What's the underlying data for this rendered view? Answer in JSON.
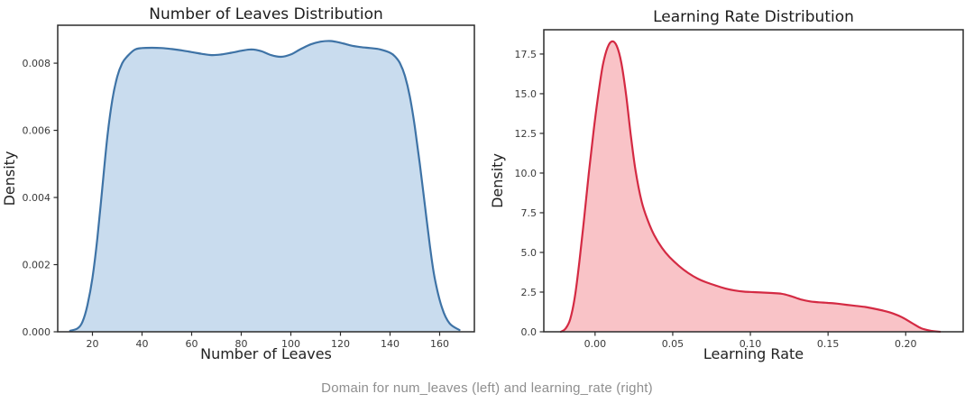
{
  "caption": "Domain for num_leaves (left) and learning_rate (right)",
  "colors": {
    "background": "#ffffff",
    "axis": "#2b2b2b",
    "title": "#1c1c1c",
    "tick_label": "#3a3a3a",
    "caption": "#8f8f8f"
  },
  "chart_data": [
    {
      "type": "area",
      "title": "Number of Leaves Distribution",
      "xlabel": "Number of Leaves",
      "ylabel": "Density",
      "xlim": [
        6,
        174
      ],
      "ylim": [
        0,
        0.00913
      ],
      "grid": false,
      "legend": "none",
      "line_color": "#3e73a6",
      "fill_color": "#c9dcee",
      "xticks": {
        "values": [
          20,
          40,
          60,
          80,
          100,
          120,
          140,
          160
        ],
        "labels": [
          "20",
          "40",
          "60",
          "80",
          "100",
          "120",
          "140",
          "160"
        ]
      },
      "yticks": {
        "values": [
          0,
          0.002,
          0.004,
          0.006,
          0.008
        ],
        "labels": [
          "0.000",
          "0.002",
          "0.004",
          "0.006",
          "0.008"
        ]
      },
      "x": [
        11,
        14,
        16,
        18,
        20,
        22,
        24,
        26,
        28,
        30,
        32,
        34,
        37,
        40,
        44,
        48,
        52,
        56,
        60,
        64,
        68,
        72,
        76,
        80,
        84,
        88,
        92,
        96,
        100,
        104,
        108,
        112,
        116,
        120,
        124,
        128,
        132,
        136,
        140,
        142,
        144,
        146,
        148,
        150,
        152,
        154,
        156,
        158,
        161,
        164,
        168
      ],
      "y": [
        3e-05,
        0.0001,
        0.0003,
        0.0008,
        0.0016,
        0.0028,
        0.0043,
        0.0058,
        0.0069,
        0.0076,
        0.008,
        0.0082,
        0.0084,
        0.00845,
        0.00846,
        0.00845,
        0.00842,
        0.00838,
        0.00833,
        0.00828,
        0.00824,
        0.00826,
        0.00831,
        0.00837,
        0.00841,
        0.00836,
        0.00824,
        0.00819,
        0.00826,
        0.00842,
        0.00856,
        0.00864,
        0.00866,
        0.00861,
        0.00853,
        0.00848,
        0.00845,
        0.00841,
        0.00831,
        0.0082,
        0.008,
        0.00762,
        0.007,
        0.0061,
        0.005,
        0.0038,
        0.0026,
        0.0016,
        0.0007,
        0.00025,
        5e-05
      ]
    },
    {
      "type": "area",
      "title": "Learning Rate Distribution",
      "xlabel": "Learning Rate",
      "ylabel": "Density",
      "xlim": [
        -0.033,
        0.237
      ],
      "ylim": [
        0,
        19.03
      ],
      "grid": false,
      "legend": "none",
      "line_color": "#d42a43",
      "fill_color": "#f9c3c7",
      "xticks": {
        "values": [
          0.0,
          0.05,
          0.1,
          0.15,
          0.2
        ],
        "labels": [
          "0.00",
          "0.05",
          "0.10",
          "0.15",
          "0.20"
        ]
      },
      "yticks": {
        "values": [
          0,
          2.5,
          5.0,
          7.5,
          10.0,
          12.5,
          15.0,
          17.5
        ],
        "labels": [
          "0.0",
          "2.5",
          "5.0",
          "7.5",
          "10.0",
          "12.5",
          "15.0",
          "17.5"
        ]
      },
      "x": [
        -0.022,
        -0.019,
        -0.016,
        -0.013,
        -0.01,
        -0.007,
        -0.004,
        -0.001,
        0.002,
        0.005,
        0.008,
        0.011,
        0.014,
        0.017,
        0.02,
        0.023,
        0.026,
        0.03,
        0.034,
        0.038,
        0.043,
        0.048,
        0.054,
        0.06,
        0.066,
        0.072,
        0.078,
        0.084,
        0.09,
        0.096,
        0.102,
        0.108,
        0.114,
        0.12,
        0.126,
        0.132,
        0.138,
        0.144,
        0.15,
        0.156,
        0.162,
        0.168,
        0.174,
        0.18,
        0.186,
        0.192,
        0.198,
        0.204,
        0.21,
        0.216,
        0.222
      ],
      "y": [
        0.0,
        0.2,
        0.8,
        2.2,
        4.5,
        7.2,
        10.0,
        12.6,
        14.9,
        16.8,
        17.9,
        18.3,
        18.0,
        16.9,
        14.9,
        12.4,
        10.2,
        8.2,
        7.0,
        6.1,
        5.3,
        4.7,
        4.15,
        3.7,
        3.35,
        3.1,
        2.9,
        2.72,
        2.6,
        2.53,
        2.5,
        2.47,
        2.44,
        2.4,
        2.25,
        2.05,
        1.92,
        1.86,
        1.82,
        1.77,
        1.7,
        1.63,
        1.56,
        1.45,
        1.32,
        1.15,
        0.9,
        0.55,
        0.22,
        0.07,
        0.0
      ]
    }
  ]
}
